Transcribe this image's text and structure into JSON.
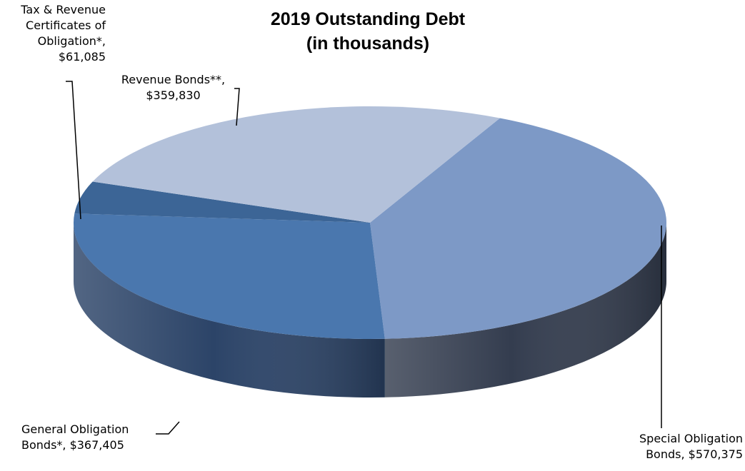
{
  "chart_data": {
    "type": "pie",
    "title": "2019 Outstanding Debt",
    "subtitle": "(in thousands)",
    "categories": [
      "Special Obligation Bonds",
      "General Obligation Bonds*",
      "Tax & Revenue Certificates of Obligation*",
      "Revenue Bonds**"
    ],
    "values": [
      570375,
      367405,
      61085,
      359830
    ],
    "data_labels": [
      [
        "Special Obligation",
        "Bonds,  $570,375"
      ],
      [
        "General Obligation",
        "Bonds*,  $367,405"
      ],
      [
        "Tax & Revenue",
        "Certificates of",
        "Obligation*,",
        "$61,085"
      ],
      [
        "Revenue Bonds**,",
        "$359,830"
      ]
    ],
    "colors": [
      "#7d99c6",
      "#4a77ae",
      "#3c6596",
      "#b3c1da"
    ],
    "side_colors": [
      "#343d4f",
      "#2c4468",
      "#243b5a",
      "#8f9ab0"
    ],
    "legend": "none",
    "style": "3d-pie"
  }
}
